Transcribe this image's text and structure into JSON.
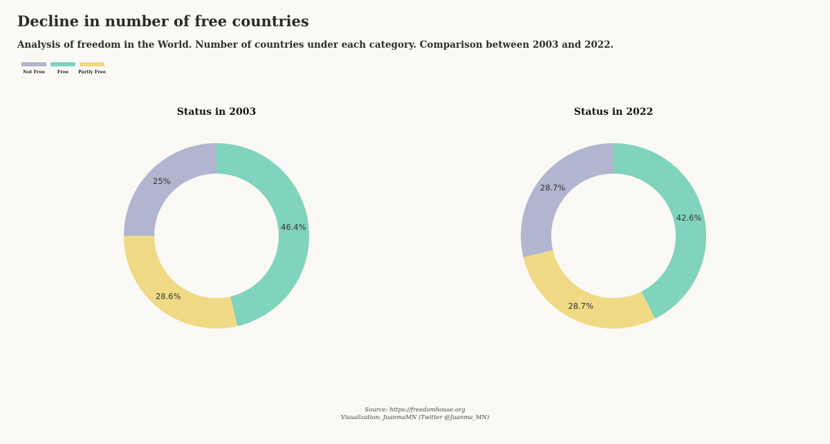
{
  "title": "Decline in number of free countries",
  "subtitle": "Analysis of freedom in the World. Number of countries under each category. Comparison between 2003 and 2022.",
  "legend": [
    {
      "label": "Not Free",
      "color": "#b2b5cf"
    },
    {
      "label": "Free",
      "color": "#80d3bc"
    },
    {
      "label": "Partly Free",
      "color": "#f1da85"
    }
  ],
  "footer": {
    "source": "Source: https://freedomhouse.org",
    "credit": "Visualization: JuanmaMN (Twitter @Juanma_MN)"
  },
  "chart_data": [
    {
      "type": "pie",
      "title": "Status in 2003",
      "slices": [
        {
          "name": "Free",
          "value": 46.4,
          "label": "46.4%",
          "color": "#80d3bc"
        },
        {
          "name": "Partly Free",
          "value": 28.6,
          "label": "28.6%",
          "color": "#f1da85"
        },
        {
          "name": "Not Free",
          "value": 25.0,
          "label": "25%",
          "color": "#b2b5cf"
        }
      ]
    },
    {
      "type": "pie",
      "title": "Status in 2022",
      "slices": [
        {
          "name": "Free",
          "value": 42.6,
          "label": "42.6%",
          "color": "#80d3bc"
        },
        {
          "name": "Partly Free",
          "value": 28.7,
          "label": "28.7%",
          "color": "#f1da85"
        },
        {
          "name": "Not Free",
          "value": 28.7,
          "label": "28.7%",
          "color": "#b2b5cf"
        }
      ]
    }
  ]
}
